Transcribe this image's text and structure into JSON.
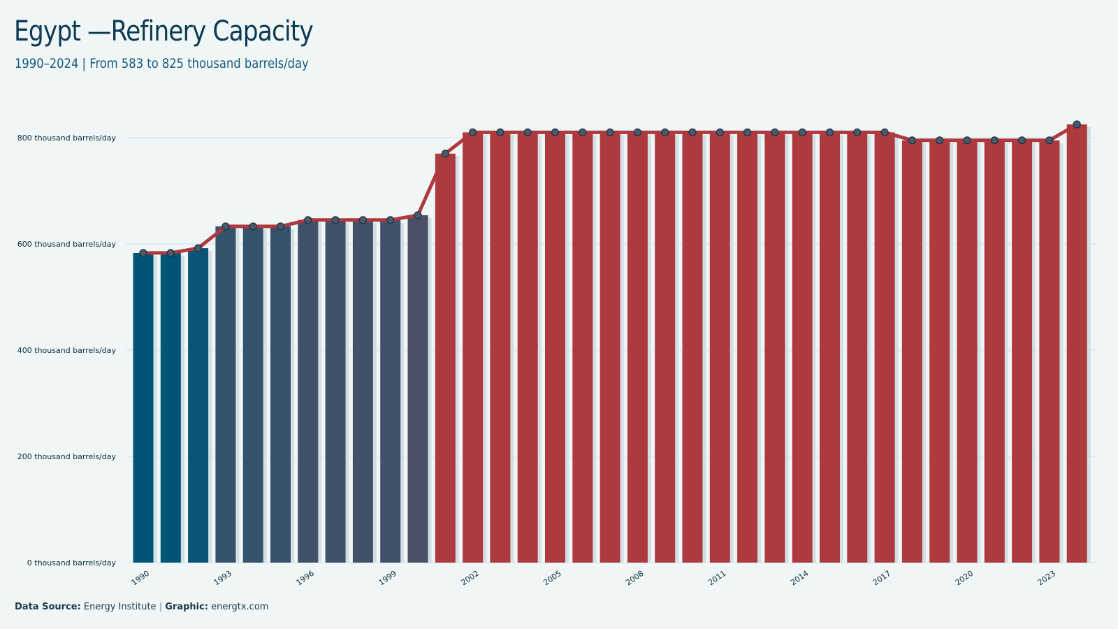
{
  "header": {
    "title": "Egypt —Refinery Capacity",
    "subtitle": "1990–2024 | From 583 to 825 thousand barrels/day"
  },
  "footer": {
    "source_label": "Data Source:",
    "source_value": "Energy Institute",
    "separator": "|",
    "graphic_label": "Graphic:",
    "graphic_value": "energtx.com"
  },
  "colors": {
    "background": "#f0f6f6",
    "gridline": "#d3e2e6",
    "low_bar": "#005577",
    "mid_bar": "#4d5068",
    "high_bar": "#ad3a3e",
    "line": "#ad3a3e",
    "marker_fill": "#4a5a6e",
    "marker_stroke": "#1e2f3a",
    "bar_shadow": "#d2dfe3"
  },
  "chart_data": {
    "type": "bar",
    "title": "Egypt —Refinery Capacity",
    "subtitle": "1990–2024 | From 583 to 825 thousand barrels/day",
    "x": [
      1990,
      1991,
      1992,
      1993,
      1994,
      1995,
      1996,
      1997,
      1998,
      1999,
      2000,
      2001,
      2002,
      2003,
      2004,
      2005,
      2006,
      2007,
      2008,
      2009,
      2010,
      2011,
      2012,
      2013,
      2014,
      2015,
      2016,
      2017,
      2018,
      2019,
      2020,
      2021,
      2022,
      2023,
      2024
    ],
    "values": [
      583,
      583,
      592,
      633,
      633,
      633,
      645,
      645,
      645,
      645,
      654,
      770,
      810,
      810,
      810,
      810,
      810,
      810,
      810,
      810,
      810,
      810,
      810,
      810,
      810,
      810,
      810,
      810,
      795,
      795,
      795,
      795,
      795,
      795,
      825
    ],
    "x_tick_labels": [
      "1990",
      "1993",
      "1996",
      "1999",
      "2002",
      "2005",
      "2008",
      "2011",
      "2014",
      "2017",
      "2020",
      "2023"
    ],
    "y_ticks": [
      0,
      200,
      400,
      600,
      800
    ],
    "y_tick_labels": [
      "0 thousand barrels/day",
      "200 thousand barrels/day",
      "400 thousand barrels/day",
      "600 thousand barrels/day",
      "800 thousand barrels/day"
    ],
    "ylim": [
      0,
      825
    ],
    "xlabel": "",
    "ylabel": "",
    "grid": true,
    "overlay": "line with circle markers",
    "legend": "none"
  }
}
